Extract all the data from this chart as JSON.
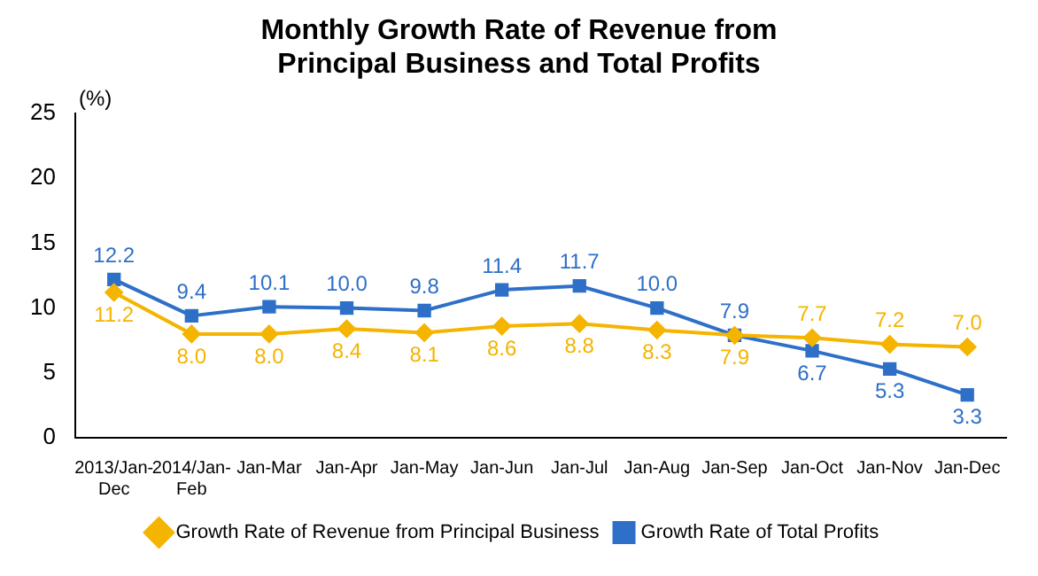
{
  "chart_data": {
    "type": "line",
    "title": "Monthly Growth Rate of Revenue from Principal Business and Total Profits",
    "ylabel": "(%)",
    "categories": [
      "2013/Jan-Dec",
      "2014/Jan-Feb",
      "Jan-Mar",
      "Jan-Apr",
      "Jan-May",
      "Jan-Jun",
      "Jan-Jul",
      "Jan-Aug",
      "Jan-Sep",
      "Jan-Oct",
      "Jan-Nov",
      "Jan-Dec"
    ],
    "series": [
      {
        "name": "Growth Rate of Revenue from Principal Business",
        "color": "#f5b400",
        "marker": "diamond",
        "values": [
          11.2,
          8.0,
          8.0,
          8.4,
          8.1,
          8.6,
          8.8,
          8.3,
          7.9,
          7.7,
          7.2,
          7.0
        ],
        "value_labels": [
          "11.2",
          "8.0",
          "8.0",
          "8.4",
          "8.1",
          "8.6",
          "8.8",
          "8.3",
          "7.9",
          "7.7",
          "7.2",
          "7.0"
        ]
      },
      {
        "name": "Growth Rate of Total Profits",
        "color": "#2e6fc8",
        "marker": "square",
        "values": [
          12.2,
          9.4,
          10.1,
          10.0,
          9.8,
          11.4,
          11.7,
          10.0,
          7.9,
          6.7,
          5.3,
          3.3
        ],
        "value_labels": [
          "12.2",
          "9.4",
          "10.1",
          "10.0",
          "9.8",
          "11.4",
          "11.7",
          "10.0",
          "7.9",
          "6.7",
          "5.3",
          "3.3"
        ]
      }
    ],
    "ylim": [
      0,
      25
    ],
    "yticks": [
      0,
      5,
      10,
      15,
      20,
      25
    ],
    "grid": false,
    "legend": "bottom"
  }
}
